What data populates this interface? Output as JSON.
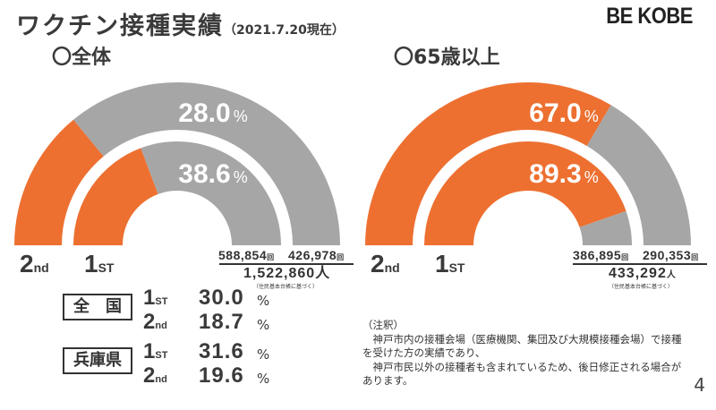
{
  "header": {
    "title": "ワクチン接種実績",
    "date": "（2021.7.20現在）",
    "logo": "BE KOBE"
  },
  "colors": {
    "first_dose": "#ED7031",
    "remaining": "#A6A6A6"
  },
  "chart_data": [
    {
      "type": "pie",
      "title": "〇全体",
      "rings": [
        {
          "name": "2nd",
          "label": "2nd",
          "value": 28.0,
          "count": "426,978",
          "display": "28.0"
        },
        {
          "name": "1ST",
          "label": "1ST",
          "value": 38.6,
          "count": "588,854",
          "display": "38.6"
        }
      ],
      "unit_pct": "%",
      "unit_count": "回",
      "population": "1,522,860",
      "population_unit": "人",
      "population_note": "（住民基本台帳に基づく）"
    },
    {
      "type": "pie",
      "title": "〇65歳以上",
      "rings": [
        {
          "name": "2nd",
          "label": "2nd",
          "value": 67.0,
          "count": "290,353",
          "display": "67.0"
        },
        {
          "name": "1ST",
          "label": "1ST",
          "value": 89.3,
          "count": "386,895",
          "display": "89.3"
        }
      ],
      "unit_pct": "%",
      "unit_count": "回",
      "population": "433,292",
      "population_unit": "人",
      "population_note": "（住民基本台帳に基づく）"
    }
  ],
  "comparison": [
    {
      "region": "全　国",
      "rows": [
        {
          "n": "1",
          "suf": "ST",
          "value": "30.0"
        },
        {
          "n": "2",
          "suf": "nd",
          "value": "18.7"
        }
      ]
    },
    {
      "region": "兵庫県",
      "rows": [
        {
          "n": "1",
          "suf": "ST",
          "value": "31.6"
        },
        {
          "n": "2",
          "suf": "nd",
          "value": "19.6"
        }
      ]
    }
  ],
  "pct_unit": "%",
  "annotation": {
    "heading": "（注釈）",
    "line1": "　神戸市内の接種会場（医療機関、集団及び大規模接種会場）で接種を受けた方の実績であり、",
    "line2": "　神戸市民以外の接種者も含まれているため、後日修正される場合があります。"
  },
  "page_number": "4"
}
